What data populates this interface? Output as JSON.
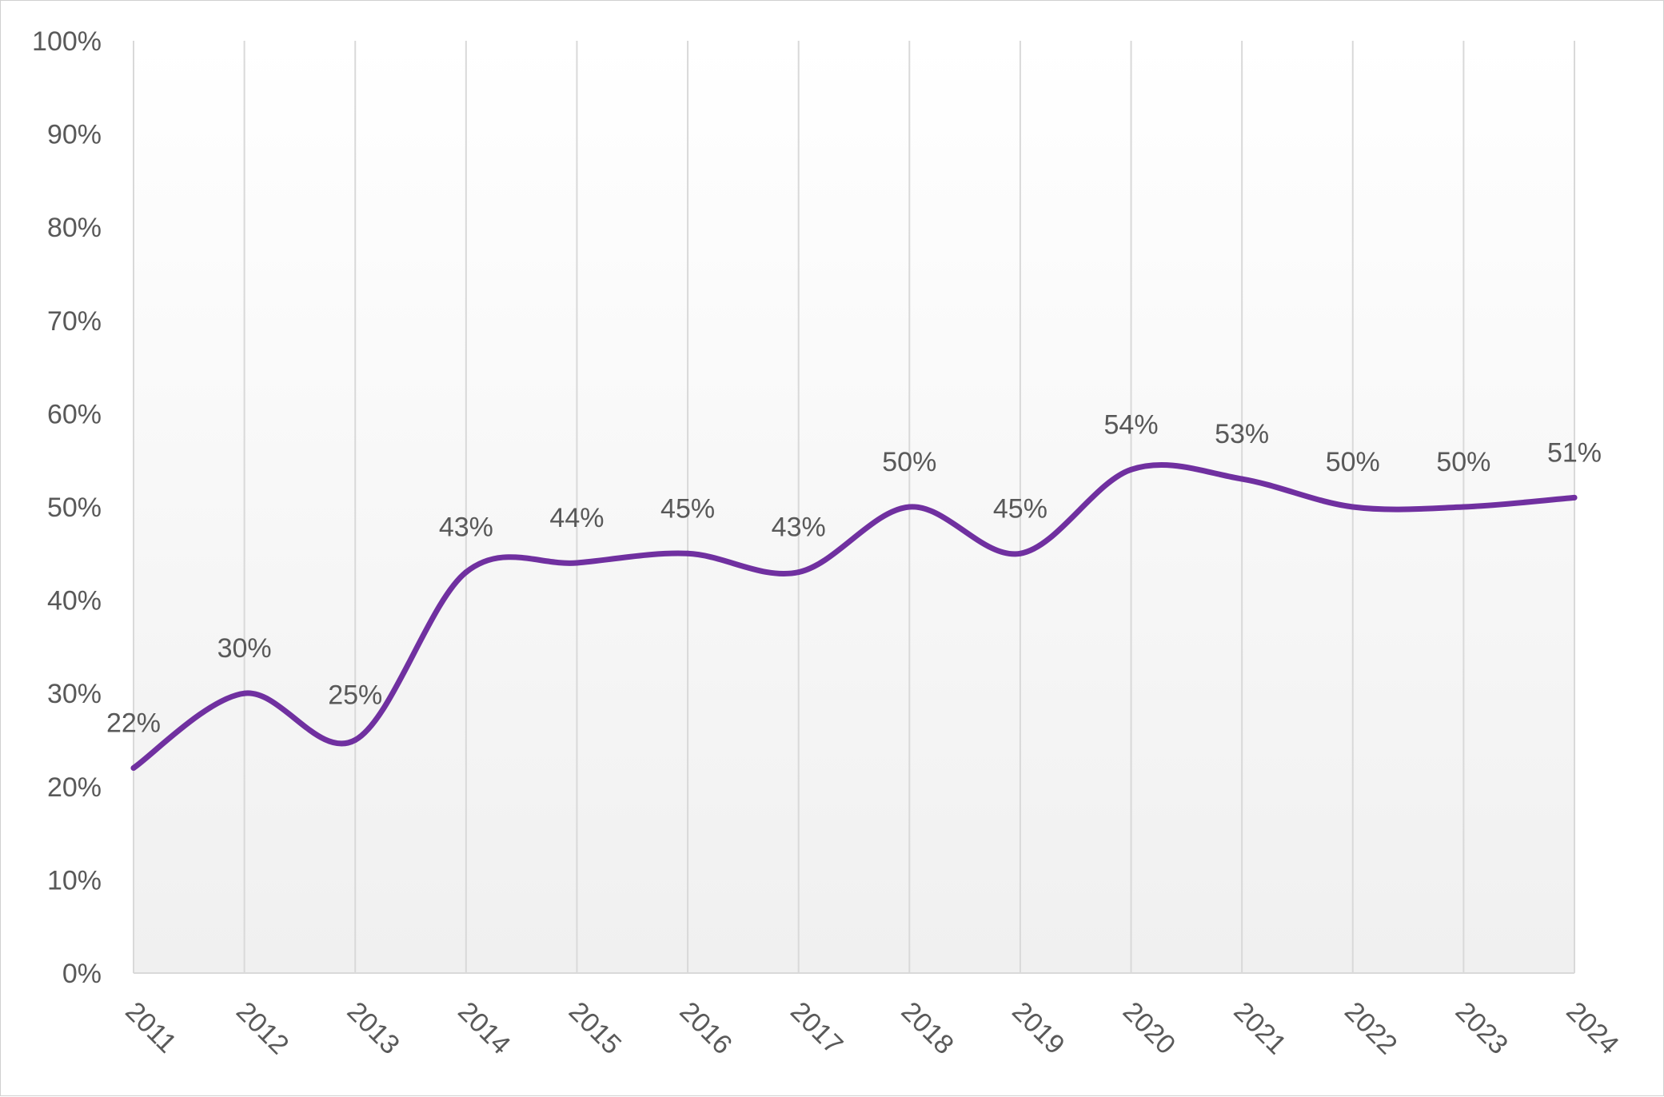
{
  "chart_data": {
    "type": "line",
    "title": "",
    "xlabel": "",
    "ylabel": "",
    "categories": [
      "2011",
      "2012",
      "2013",
      "2014",
      "2015",
      "2016",
      "2017",
      "2018",
      "2019",
      "2020",
      "2021",
      "2022",
      "2023",
      "2024"
    ],
    "series": [
      {
        "values": [
          22,
          30,
          25,
          43,
          44,
          45,
          43,
          50,
          45,
          54,
          53,
          50,
          50,
          51
        ],
        "data_labels": [
          "22%",
          "30%",
          "25%",
          "43%",
          "44%",
          "45%",
          "43%",
          "50%",
          "45%",
          "54%",
          "53%",
          "50%",
          "50%",
          "51%"
        ],
        "color": "#7030A0",
        "smooth": true
      }
    ],
    "ylim": [
      0,
      100
    ],
    "yticks": [
      0,
      10,
      20,
      30,
      40,
      50,
      60,
      70,
      80,
      90,
      100
    ],
    "ytick_labels": [
      "0%",
      "10%",
      "20%",
      "30%",
      "40%",
      "50%",
      "60%",
      "70%",
      "80%",
      "90%",
      "100%"
    ],
    "x_tick_rotation": 45,
    "grid": {
      "vertical": true,
      "horizontal": false
    },
    "legend": "none",
    "plot_background": "gradient white to light gray"
  }
}
